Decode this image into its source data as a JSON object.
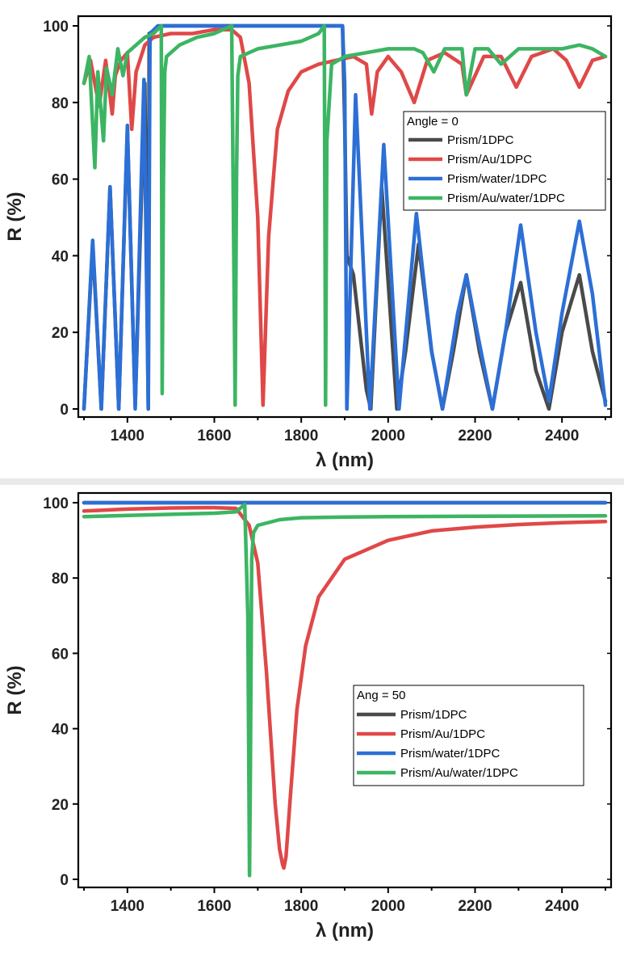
{
  "chart_data": [
    {
      "type": "line",
      "legend_title": "Angle = 0",
      "legend_position": "upper-right",
      "xlabel": "λ (nm)",
      "ylabel": "R (%)",
      "xlim": [
        1300,
        2500
      ],
      "ylim": [
        0,
        100
      ],
      "x_ticks": [
        1400,
        1600,
        1800,
        2000,
        2200,
        2400
      ],
      "y_ticks": [
        0,
        20,
        40,
        60,
        80,
        100
      ],
      "series": [
        {
          "name": "Prism/1DPC",
          "color": "#4a4a4a",
          "x": [
            1300,
            1320,
            1340,
            1360,
            1380,
            1400,
            1418,
            1440,
            1448,
            1450,
            1480,
            1600,
            1700,
            1800,
            1880,
            1895,
            1900,
            1905,
            1920,
            1950,
            1960,
            1985,
            2020,
            2040,
            2070,
            2100,
            2125,
            2150,
            2180,
            2210,
            2240,
            2270,
            2305,
            2340,
            2370,
            2400,
            2440,
            2470,
            2500
          ],
          "y": [
            0,
            43,
            0,
            58,
            0,
            73,
            1,
            85,
            0,
            98,
            100,
            100,
            100,
            100,
            100,
            100,
            75,
            40,
            35,
            5,
            0,
            58,
            0,
            15,
            43,
            15,
            0,
            15,
            35,
            15,
            0,
            20,
            33,
            10,
            0,
            20,
            35,
            15,
            2
          ]
        },
        {
          "name": "Prism/Au/1DPC",
          "color": "#e04848",
          "x": [
            1300,
            1315,
            1335,
            1350,
            1365,
            1372,
            1385,
            1400,
            1410,
            1420,
            1440,
            1460,
            1500,
            1550,
            1600,
            1640,
            1660,
            1680,
            1700,
            1712,
            1725,
            1745,
            1770,
            1800,
            1840,
            1880,
            1920,
            1950,
            1962,
            1975,
            2000,
            2030,
            2060,
            2090,
            2130,
            2170,
            2180,
            2220,
            2260,
            2295,
            2330,
            2380,
            2410,
            2440,
            2470,
            2500
          ],
          "y": [
            85,
            91,
            79,
            91,
            77,
            87,
            91,
            93,
            73,
            88,
            95,
            97,
            98,
            98,
            99,
            99,
            97,
            85,
            50,
            1,
            45,
            73,
            83,
            88,
            90,
            91,
            92,
            90,
            77,
            88,
            92,
            88,
            80,
            91,
            93,
            90,
            82,
            92,
            92,
            84,
            92,
            94,
            91,
            84,
            91,
            92
          ]
        },
        {
          "name": "Prism/water/1DPC",
          "color": "#2c6fd6",
          "x": [
            1300,
            1320,
            1340,
            1360,
            1380,
            1400,
            1418,
            1438,
            1448,
            1452,
            1470,
            1600,
            1800,
            1880,
            1895,
            1900,
            1905,
            1925,
            1958,
            1990,
            2025,
            2065,
            2100,
            2125,
            2160,
            2180,
            2205,
            2240,
            2270,
            2305,
            2340,
            2370,
            2400,
            2440,
            2470,
            2500
          ],
          "y": [
            0,
            44,
            0,
            58,
            0,
            74,
            0,
            86,
            0,
            98,
            100,
            100,
            100,
            100,
            100,
            85,
            0,
            82,
            0,
            69,
            0,
            51,
            15,
            0,
            25,
            35,
            20,
            0,
            20,
            48,
            20,
            2,
            25,
            49,
            30,
            1
          ]
        },
        {
          "name": "Prism/Au/water/1DPC",
          "color": "#3cb563",
          "x": [
            1300,
            1312,
            1325,
            1332,
            1345,
            1352,
            1365,
            1378,
            1390,
            1400,
            1420,
            1440,
            1460,
            1478,
            1480,
            1483,
            1486,
            1490,
            1520,
            1560,
            1600,
            1640,
            1648,
            1651,
            1654,
            1660,
            1700,
            1750,
            1800,
            1840,
            1853,
            1856,
            1859,
            1870,
            1900,
            1950,
            2000,
            2060,
            2080,
            2105,
            2130,
            2170,
            2180,
            2200,
            2230,
            2260,
            2300,
            2350,
            2400,
            2440,
            2470,
            2500
          ],
          "y": [
            85,
            92,
            63,
            88,
            70,
            89,
            82,
            94,
            87,
            93,
            95,
            97,
            98,
            100,
            4,
            60,
            88,
            92,
            95,
            97,
            98,
            100,
            1,
            60,
            87,
            92,
            94,
            95,
            96,
            98,
            100,
            1,
            70,
            90,
            92,
            93,
            94,
            94,
            93,
            88,
            94,
            94,
            82,
            94,
            94,
            90,
            94,
            94,
            94,
            95,
            94,
            92
          ]
        }
      ]
    },
    {
      "type": "line",
      "legend_title": "Ang = 50",
      "legend_position": "center-right",
      "xlabel": "λ (nm)",
      "ylabel": "R (%)",
      "xlim": [
        1300,
        2500
      ],
      "ylim": [
        0,
        100
      ],
      "x_ticks": [
        1400,
        1600,
        1800,
        2000,
        2200,
        2400
      ],
      "y_ticks": [
        0,
        20,
        40,
        60,
        80,
        100
      ],
      "series": [
        {
          "name": "Prism/1DPC",
          "color": "#4a4a4a",
          "x": [
            1300,
            2500
          ],
          "y": [
            100,
            100
          ]
        },
        {
          "name": "Prism/Au/1DPC",
          "color": "#e04848",
          "x": [
            1300,
            1400,
            1500,
            1600,
            1650,
            1680,
            1700,
            1720,
            1740,
            1750,
            1757,
            1760,
            1765,
            1775,
            1790,
            1810,
            1840,
            1900,
            2000,
            2100,
            2200,
            2300,
            2400,
            2500
          ],
          "y": [
            97.8,
            98.3,
            98.6,
            98.7,
            98.5,
            94,
            84,
            55,
            20,
            8,
            4,
            3,
            6,
            22,
            45,
            62,
            75,
            85,
            90,
            92.5,
            93.5,
            94.2,
            94.7,
            95
          ]
        },
        {
          "name": "Prism/water/1DPC",
          "color": "#2c6fd6",
          "x": [
            1300,
            2500
          ],
          "y": [
            100,
            100
          ]
        },
        {
          "name": "Prism/Au/water/1DPC",
          "color": "#3cb563",
          "x": [
            1300,
            1400,
            1500,
            1600,
            1650,
            1670,
            1677,
            1681,
            1683,
            1686,
            1690,
            1700,
            1750,
            1800,
            1900,
            2000,
            2200,
            2500
          ],
          "y": [
            96.3,
            96.6,
            96.9,
            97.2,
            97.6,
            99.5,
            70,
            1,
            30,
            85,
            92,
            94,
            95.5,
            96,
            96.2,
            96.3,
            96.4,
            96.5
          ]
        }
      ]
    }
  ]
}
